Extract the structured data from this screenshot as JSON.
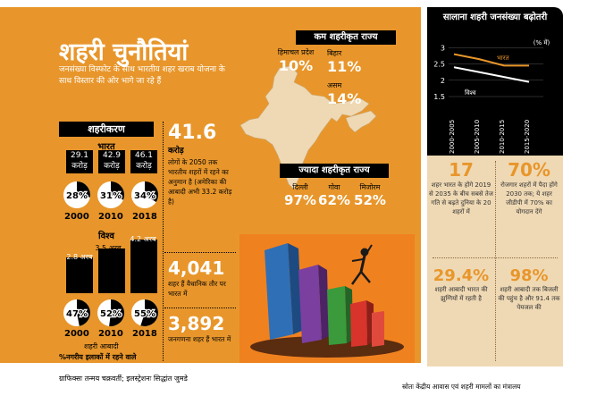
{
  "title": "शहरी चुनौतियां",
  "subtitle": "जनसंख्या विस्फोट के साथ भारतीय शहर खराब योजना के साथ विस्तार की ओर भागे जा रहे हैं",
  "urbanization": {
    "header": "शहरीकरण",
    "india": {
      "label": "भारत",
      "populations": [
        "29.1 करोड़",
        "42.9 करोड़",
        "46.1 करोड़"
      ],
      "percents": [
        "28%",
        "31%",
        "34%"
      ],
      "years": [
        "2000",
        "2010",
        "2018"
      ]
    },
    "world": {
      "label": "विश्व",
      "populations": [
        "2.8 अरब",
        "3.5 अरब",
        "4.2 अरब"
      ],
      "percents": [
        "47%",
        "52%",
        "55%"
      ],
      "years": [
        "2000",
        "2010",
        "2018"
      ]
    },
    "legend_bars": "शहरी आबादी",
    "legend_circles": "%नगरीय इलाकों में रहने वाले"
  },
  "stats": [
    {
      "value": "41.6",
      "unit": "करोड़",
      "text": "लोगों के 2050 तक भारतीय शहरों में रहने का अनुमान है (अमेरिका की आबादी अभी 33.2 करोड़ है)"
    },
    {
      "value": "4,041",
      "text": "शहर हैं वैधानिक तौर पर भारत में"
    },
    {
      "value": "3,892",
      "text": "जनगणना शहर हैं भारत में"
    }
  ],
  "least_urbanised": {
    "header": "कम शहरीकृत राज्य",
    "states": [
      {
        "name": "हिमाचल प्रदेश",
        "value": "10%"
      },
      {
        "name": "बिहार",
        "value": "11%"
      },
      {
        "name": "असम",
        "value": "14%"
      }
    ]
  },
  "most_urbanised": {
    "header": "ज्यादा शहरीकृत राज्य",
    "states": [
      {
        "name": "दिल्ली",
        "value": "97%"
      },
      {
        "name": "गोवा",
        "value": "62%"
      },
      {
        "name": "मिजोरम",
        "value": "52%"
      }
    ]
  },
  "growth_chart": {
    "title": "सालाना शहरी जनसंख्या बढ़ोतरी",
    "unit": "(% में)",
    "series_india": "भारत",
    "series_world": "विश्व"
  },
  "facts": [
    {
      "value": "17",
      "text": "शहर भारत के होंगे 2019 से 2035 के बीच सबसे तेज गति से बढ़ते दुनिया के 20 शहरों में"
    },
    {
      "value": "70%",
      "text": "रोजगार शहरों में पैदा होंगे 2030 तक; ये शहर जीडीपी में 70% का योगदान देंगे"
    },
    {
      "value": "29.4%",
      "text": "शहरी आबादी भारत की झुग्गियों में रहती है"
    },
    {
      "value": "98%",
      "text": "शहरी आबादी तक बिजली की पहुंच है और 91.4 तक पेयजल की"
    }
  ],
  "footer": {
    "credit": "ग्राफिक्सः तन्मय चक्रवर्ती; इलस्ट्रेशनः सिद्धांत जुमडे",
    "source": "स्रोतः केंद्रीय आवास एवं शहरी मामलों का मंत्रालय"
  },
  "chart_data": {
    "type": "line",
    "title": "सालाना शहरी जनसंख्या बढ़ोतरी",
    "ylabel": "(% में)",
    "categories": [
      "2000-2005",
      "2005-2010",
      "2010-2015",
      "2015-2020"
    ],
    "yticks": [
      "1.5",
      "2",
      "2.5",
      "3"
    ],
    "ylim": [
      1.5,
      3.2
    ],
    "series": [
      {
        "name": "भारत",
        "values": [
          2.8,
          2.65,
          2.45,
          2.45
        ]
      },
      {
        "name": "विश्व",
        "values": [
          2.4,
          2.25,
          2.1,
          1.95
        ]
      }
    ]
  }
}
